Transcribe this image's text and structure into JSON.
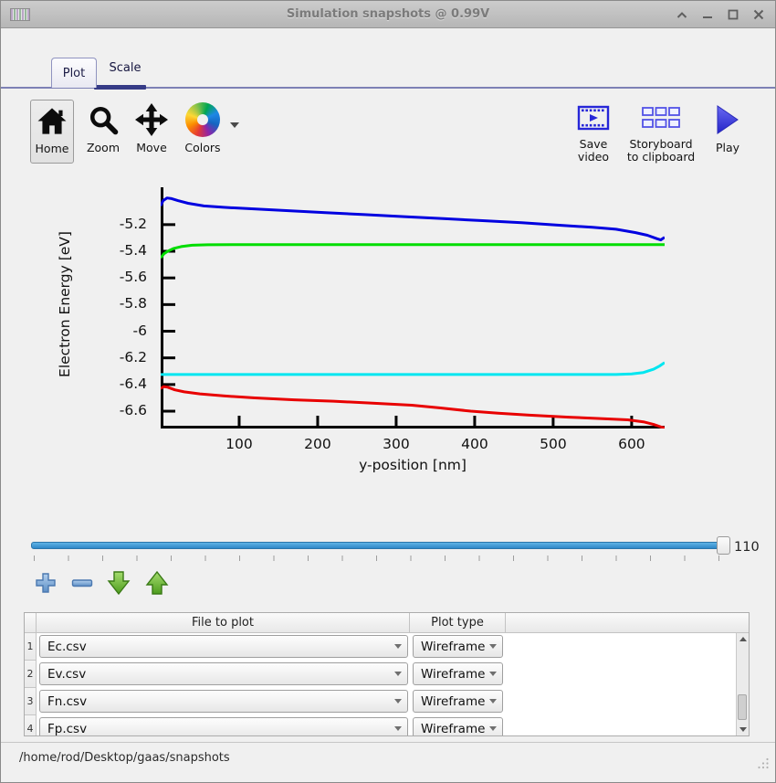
{
  "window": {
    "title": "Simulation snapshots @ 0.99V",
    "controls": {
      "shade": "shade",
      "minimize": "minimize",
      "maximize": "maximize",
      "close": "close"
    }
  },
  "tabs": [
    {
      "label": "Plot",
      "active": true
    },
    {
      "label": "Scale",
      "active": false
    }
  ],
  "toolbar": {
    "left": [
      {
        "label": "Home",
        "icon": "home-icon",
        "active": true
      },
      {
        "label": "Zoom",
        "icon": "magnifier-icon",
        "active": false
      },
      {
        "label": "Move",
        "icon": "move-arrows-icon",
        "active": false
      },
      {
        "label": "Colors",
        "icon": "color-wheel-icon",
        "has_dropdown": true
      }
    ],
    "right": [
      {
        "lines": [
          "Save",
          "video"
        ],
        "icon": "film-play-icon"
      },
      {
        "lines": [
          "Storyboard",
          "to clipboard"
        ],
        "icon": "storyboard-grid-icon"
      },
      {
        "lines": [
          "Play"
        ],
        "icon": "play-triangle-icon"
      }
    ]
  },
  "chart_data": {
    "type": "line",
    "title": "",
    "xlabel": "y-position [nm]",
    "ylabel": "Electron Energy [eV]",
    "xlim": [
      0,
      642
    ],
    "ylim": [
      -6.73,
      -4.92
    ],
    "grid": false,
    "legend_position": "none",
    "xticks": [
      100,
      200,
      300,
      400,
      500,
      600
    ],
    "xticklabels": [
      "100",
      "200",
      "300",
      "400",
      "500",
      "600"
    ],
    "yticks": [
      -5.2,
      -5.4,
      -5.6,
      -5.8,
      -6.0,
      -6.2,
      -6.4,
      -6.6
    ],
    "yticklabels": [
      "-5.2",
      "-5.4",
      "-5.6",
      "-5.8",
      "-6",
      "-6.2",
      "-6.4",
      "-6.6"
    ],
    "series": [
      {
        "name": "Ec.csv",
        "color": "#0000e0",
        "points": [
          [
            0,
            -5.06
          ],
          [
            3,
            -5.02
          ],
          [
            8,
            -5.0
          ],
          [
            14,
            -5.005
          ],
          [
            22,
            -5.02
          ],
          [
            35,
            -5.04
          ],
          [
            55,
            -5.06
          ],
          [
            80,
            -5.07
          ],
          [
            110,
            -5.08
          ],
          [
            160,
            -5.095
          ],
          [
            210,
            -5.11
          ],
          [
            260,
            -5.125
          ],
          [
            310,
            -5.14
          ],
          [
            360,
            -5.155
          ],
          [
            410,
            -5.17
          ],
          [
            460,
            -5.185
          ],
          [
            510,
            -5.205
          ],
          [
            550,
            -5.22
          ],
          [
            580,
            -5.235
          ],
          [
            605,
            -5.26
          ],
          [
            620,
            -5.28
          ],
          [
            632,
            -5.305
          ],
          [
            637,
            -5.315
          ],
          [
            642,
            -5.295
          ]
        ]
      },
      {
        "name": "Ev.csv",
        "color": "#00dd00",
        "points": [
          [
            0,
            -5.45
          ],
          [
            4,
            -5.42
          ],
          [
            9,
            -5.4
          ],
          [
            16,
            -5.38
          ],
          [
            26,
            -5.365
          ],
          [
            40,
            -5.355
          ],
          [
            60,
            -5.351
          ],
          [
            100,
            -5.35
          ],
          [
            642,
            -5.35
          ]
        ]
      },
      {
        "name": "Fn.csv",
        "color": "#e80000",
        "points": [
          [
            0,
            -6.43
          ],
          [
            4,
            -6.415
          ],
          [
            9,
            -6.42
          ],
          [
            18,
            -6.44
          ],
          [
            30,
            -6.455
          ],
          [
            50,
            -6.47
          ],
          [
            80,
            -6.485
          ],
          [
            120,
            -6.5
          ],
          [
            170,
            -6.515
          ],
          [
            220,
            -6.525
          ],
          [
            270,
            -6.54
          ],
          [
            320,
            -6.555
          ],
          [
            355,
            -6.575
          ],
          [
            395,
            -6.6
          ],
          [
            430,
            -6.615
          ],
          [
            470,
            -6.63
          ],
          [
            520,
            -6.645
          ],
          [
            560,
            -6.655
          ],
          [
            595,
            -6.665
          ],
          [
            615,
            -6.68
          ],
          [
            628,
            -6.7
          ],
          [
            638,
            -6.72
          ],
          [
            642,
            -6.725
          ]
        ]
      },
      {
        "name": "Fp.csv",
        "color": "#00e6f0",
        "points": [
          [
            0,
            -6.325
          ],
          [
            580,
            -6.325
          ],
          [
            600,
            -6.32
          ],
          [
            615,
            -6.31
          ],
          [
            628,
            -6.285
          ],
          [
            636,
            -6.26
          ],
          [
            642,
            -6.235
          ]
        ]
      }
    ]
  },
  "slider": {
    "value_label": "110",
    "position": "max"
  },
  "row_actions": [
    {
      "name": "add",
      "icon": "plus-icon"
    },
    {
      "name": "remove",
      "icon": "minus-icon"
    },
    {
      "name": "move-down",
      "icon": "arrow-down-icon"
    },
    {
      "name": "move-up",
      "icon": "arrow-up-icon"
    }
  ],
  "table": {
    "headers": {
      "file": "File to plot",
      "type": "Plot type"
    },
    "rows": [
      {
        "num": "1",
        "file": "Ec.csv",
        "plot_type": "Wireframe"
      },
      {
        "num": "2",
        "file": "Ev.csv",
        "plot_type": "Wireframe"
      },
      {
        "num": "3",
        "file": "Fn.csv",
        "plot_type": "Wireframe"
      },
      {
        "num": "4",
        "file": "Fp.csv",
        "plot_type": "Wireframe"
      }
    ]
  },
  "statusbar": {
    "path": "/home/rod/Desktop/gaas/snapshots"
  }
}
